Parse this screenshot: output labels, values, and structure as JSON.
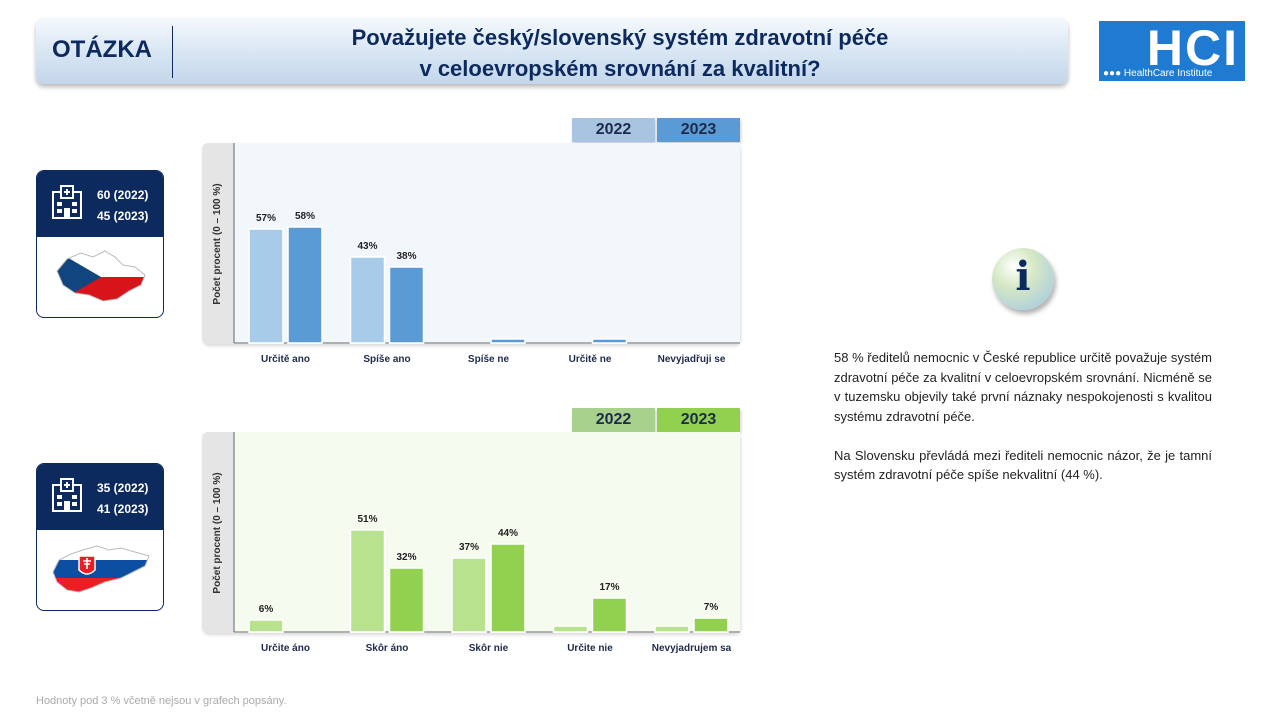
{
  "header": {
    "label": "OTÁZKA",
    "question_line1": "Považujete český/slovenský systém zdravotní péče",
    "question_line2": "v celoevropském srovnání za kvalitní?"
  },
  "logo": {
    "main": "HCI",
    "sub": "HealthCare Institute"
  },
  "cards": [
    {
      "line1": "60 (2022)",
      "line2": "45 (2023)",
      "icon": "hospital-icon",
      "flag": "czech-map-flag"
    },
    {
      "line1": "35 (2022)",
      "line2": "41 (2023)",
      "icon": "hospital-icon",
      "flag": "slovakia-map-flag"
    }
  ],
  "legend_years": [
    "2022",
    "2023"
  ],
  "chart_data": [
    {
      "type": "bar",
      "ylabel": "Počet procent  (0 – 100 %)",
      "ylim": [
        0,
        100
      ],
      "categories": [
        "Určitě ano",
        "Spíše ano",
        "Spíše ne",
        "Určitě ne",
        "Nevyjadřuji se"
      ],
      "series": [
        {
          "name": "2022",
          "values": [
            57,
            43,
            0,
            0,
            0
          ],
          "labels": [
            "57%",
            "43%",
            "",
            "",
            ""
          ],
          "color": "#a9cbea"
        },
        {
          "name": "2023",
          "values": [
            58,
            38,
            2,
            2,
            0
          ],
          "labels": [
            "58%",
            "38%",
            "",
            "",
            ""
          ],
          "color": "#5b9bd5"
        }
      ],
      "legend_colors": [
        "#a9c4e0",
        "#5b9bd5"
      ],
      "plot_color": "#f2f7fc",
      "grid": false
    },
    {
      "type": "bar",
      "ylabel": "Počet procent  (0 – 100 %)",
      "ylim": [
        0,
        100
      ],
      "categories": [
        "Určite áno",
        "Skôr áno",
        "Skôr nie",
        "Určite nie",
        "Nevyjadrujem sa"
      ],
      "series": [
        {
          "name": "2022",
          "values": [
            6,
            51,
            37,
            3,
            3
          ],
          "labels": [
            "6%",
            "51%",
            "37%",
            "",
            ""
          ],
          "color": "#b9e28e"
        },
        {
          "name": "2023",
          "values": [
            0,
            32,
            44,
            17,
            7
          ],
          "labels": [
            "",
            "32%",
            "44%",
            "17%",
            "7%"
          ],
          "color": "#92d050"
        }
      ],
      "legend_colors": [
        "#a9d18e",
        "#92d050"
      ],
      "plot_color": "#f5fbee",
      "grid": false
    }
  ],
  "info": {
    "paragraph1": "58 % ředitelů nemocnic v České republice určitě považuje systém zdravotní péče za kvalitní v celoevropském srovnání. Nicméně se v tuzemsku objevily také první náznaky nespokojenosti s kvalitou systému zdravotní péče.",
    "paragraph2": "Na Slovensku převládá mezi řediteli nemocnic názor, že je tamní systém zdravotní péče spíše nekvalitní (44 %).",
    "icon": "info-icon",
    "icon_glyph": "i"
  },
  "footnote": "Hodnoty pod 3 % včetně nejsou v grafech popsány."
}
